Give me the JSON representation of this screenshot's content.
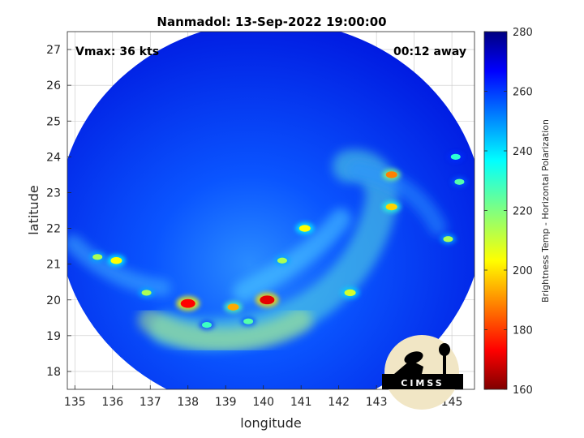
{
  "chart_data": {
    "type": "heatmap",
    "title": "Nanmadol: 13-Sep-2022 19:00:00",
    "annotations": {
      "vmax": "Vmax: 36 kts",
      "time_offset": "00:12 away"
    },
    "xlabel": "longitude",
    "ylabel": "latitude",
    "xlim": [
      134.8,
      145.6
    ],
    "ylim": [
      17.5,
      27.5
    ],
    "xticks": [
      135,
      136,
      137,
      138,
      139,
      140,
      141,
      142,
      143,
      144,
      145
    ],
    "yticks": [
      18,
      19,
      20,
      21,
      22,
      23,
      24,
      25,
      26,
      27
    ],
    "grid": true,
    "colorbar": {
      "label": "Brightness Temp - Horizontal Polarization",
      "range": [
        160,
        280
      ],
      "ticks": [
        160,
        180,
        200,
        220,
        240,
        260,
        280
      ],
      "colormap": "jet"
    },
    "swath": {
      "center": [
        140.2,
        22.3
      ],
      "radius_lon": 5.65,
      "radius_lat": 5.5
    },
    "features": [
      {
        "lon": 140.1,
        "lat": 20.0,
        "tb": 172
      },
      {
        "lon": 138.0,
        "lat": 19.9,
        "tb": 175
      },
      {
        "lon": 139.2,
        "lat": 19.8,
        "tb": 195
      },
      {
        "lon": 143.4,
        "lat": 23.5,
        "tb": 190
      },
      {
        "lon": 143.4,
        "lat": 22.6,
        "tb": 200
      },
      {
        "lon": 141.1,
        "lat": 22.0,
        "tb": 205
      },
      {
        "lon": 140.5,
        "lat": 21.1,
        "tb": 215
      },
      {
        "lon": 136.1,
        "lat": 21.1,
        "tb": 205
      },
      {
        "lon": 135.6,
        "lat": 21.2,
        "tb": 215
      },
      {
        "lon": 142.3,
        "lat": 20.2,
        "tb": 210
      },
      {
        "lon": 139.6,
        "lat": 19.4,
        "tb": 225
      },
      {
        "lon": 138.5,
        "lat": 19.3,
        "tb": 228
      },
      {
        "lon": 144.9,
        "lat": 21.7,
        "tb": 215
      },
      {
        "lon": 145.2,
        "lat": 23.3,
        "tb": 225
      },
      {
        "lon": 145.1,
        "lat": 24.0,
        "tb": 230
      },
      {
        "lon": 136.9,
        "lat": 20.2,
        "tb": 215
      }
    ]
  },
  "logo": {
    "text": "CIMSS"
  }
}
